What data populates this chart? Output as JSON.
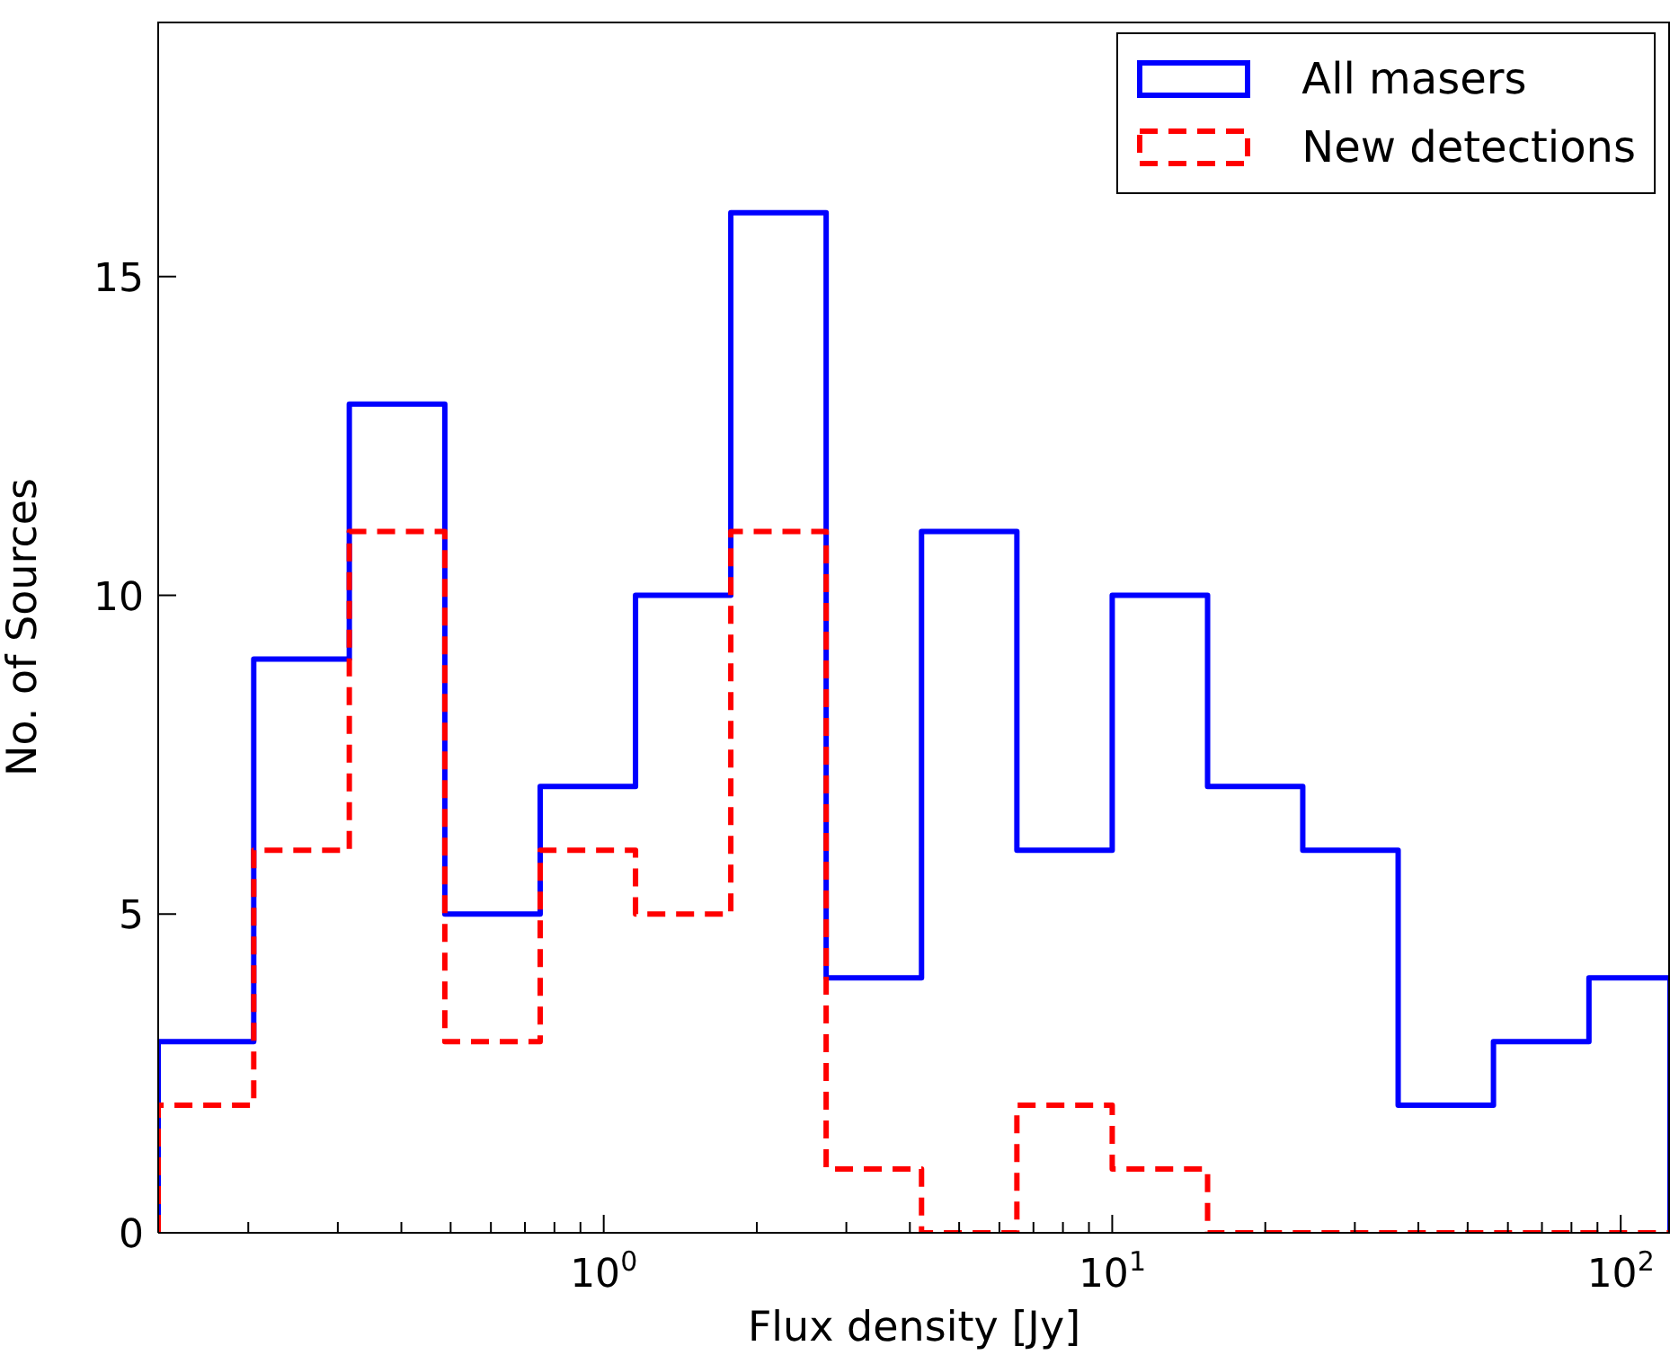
{
  "chart_data": {
    "type": "histogram",
    "xlabel": "Flux density [Jy]",
    "ylabel": "No. of Sources",
    "log": "x",
    "bins": [
      0.133,
      0.205,
      0.316,
      0.487,
      0.75,
      1.155,
      1.778,
      2.738,
      4.217,
      6.494,
      10,
      15.4,
      23.7,
      36.5,
      56.2,
      86.6,
      125
    ],
    "series": [
      {
        "name": "All masers",
        "color": "#0000ff",
        "line_style": "solid",
        "values": [
          3,
          9,
          13,
          5,
          7,
          10,
          16,
          4,
          11,
          6,
          10,
          7,
          6,
          2,
          3,
          4
        ]
      },
      {
        "name": "New detections",
        "color": "#ff0000",
        "line_style": "dashed",
        "values": [
          2,
          6,
          11,
          3,
          6,
          5,
          11,
          1,
          0,
          2,
          1,
          0,
          0,
          0,
          0,
          0
        ]
      }
    ],
    "xlim": [
      0.133,
      125
    ],
    "xticks": [
      {
        "value": 0.2,
        "label": null
      },
      {
        "value": 0.3,
        "label": null
      },
      {
        "value": 0.4,
        "label": null
      },
      {
        "value": 0.5,
        "label": null
      },
      {
        "value": 0.6,
        "label": null
      },
      {
        "value": 0.7,
        "label": null
      },
      {
        "value": 0.8,
        "label": null
      },
      {
        "value": 0.9,
        "label": null
      },
      {
        "value": 1,
        "label": "10$^{0}$"
      },
      {
        "value": 2,
        "label": null
      },
      {
        "value": 3,
        "label": null
      },
      {
        "value": 4,
        "label": null
      },
      {
        "value": 5,
        "label": null
      },
      {
        "value": 6,
        "label": null
      },
      {
        "value": 7,
        "label": null
      },
      {
        "value": 8,
        "label": null
      },
      {
        "value": 9,
        "label": null
      },
      {
        "value": 10,
        "label": "10$^{1}$"
      },
      {
        "value": 20,
        "label": null
      },
      {
        "value": 30,
        "label": null
      },
      {
        "value": 40,
        "label": null
      },
      {
        "value": 50,
        "label": null
      },
      {
        "value": 60,
        "label": null
      },
      {
        "value": 70,
        "label": null
      },
      {
        "value": 80,
        "label": null
      },
      {
        "value": 90,
        "label": null
      },
      {
        "value": 100,
        "label": "10$^{2}$"
      }
    ],
    "ylim": [
      0,
      19
    ],
    "yticks": [
      0,
      5,
      10,
      15
    ],
    "grid": false,
    "legend": "top right"
  }
}
